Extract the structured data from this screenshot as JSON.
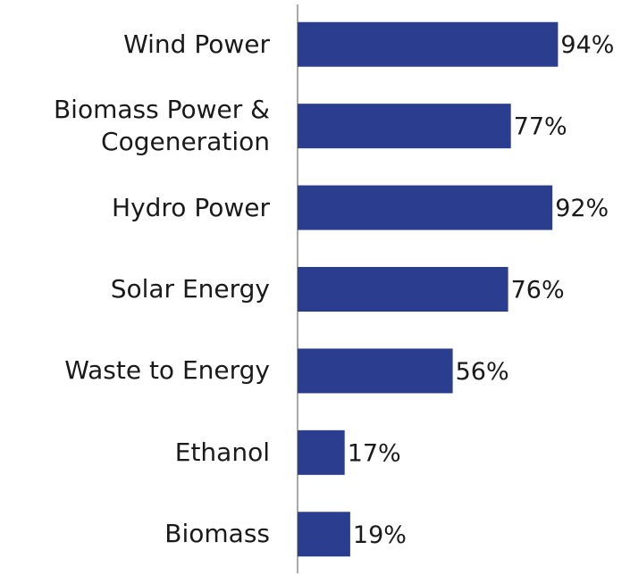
{
  "chart_data": {
    "type": "bar",
    "orientation": "horizontal",
    "categories": [
      "Wind Power",
      "Biomass Power & Cogeneration",
      "Hydro Power",
      "Solar Energy",
      "Waste to Energy",
      "Ethanol",
      "Biomass"
    ],
    "values": [
      94,
      77,
      92,
      76,
      56,
      17,
      19
    ],
    "value_labels": [
      "94%",
      "77%",
      "92%",
      "76%",
      "56%",
      "17%",
      "19%"
    ],
    "color": "#2b3d8f",
    "xlim": [
      0,
      100
    ]
  }
}
